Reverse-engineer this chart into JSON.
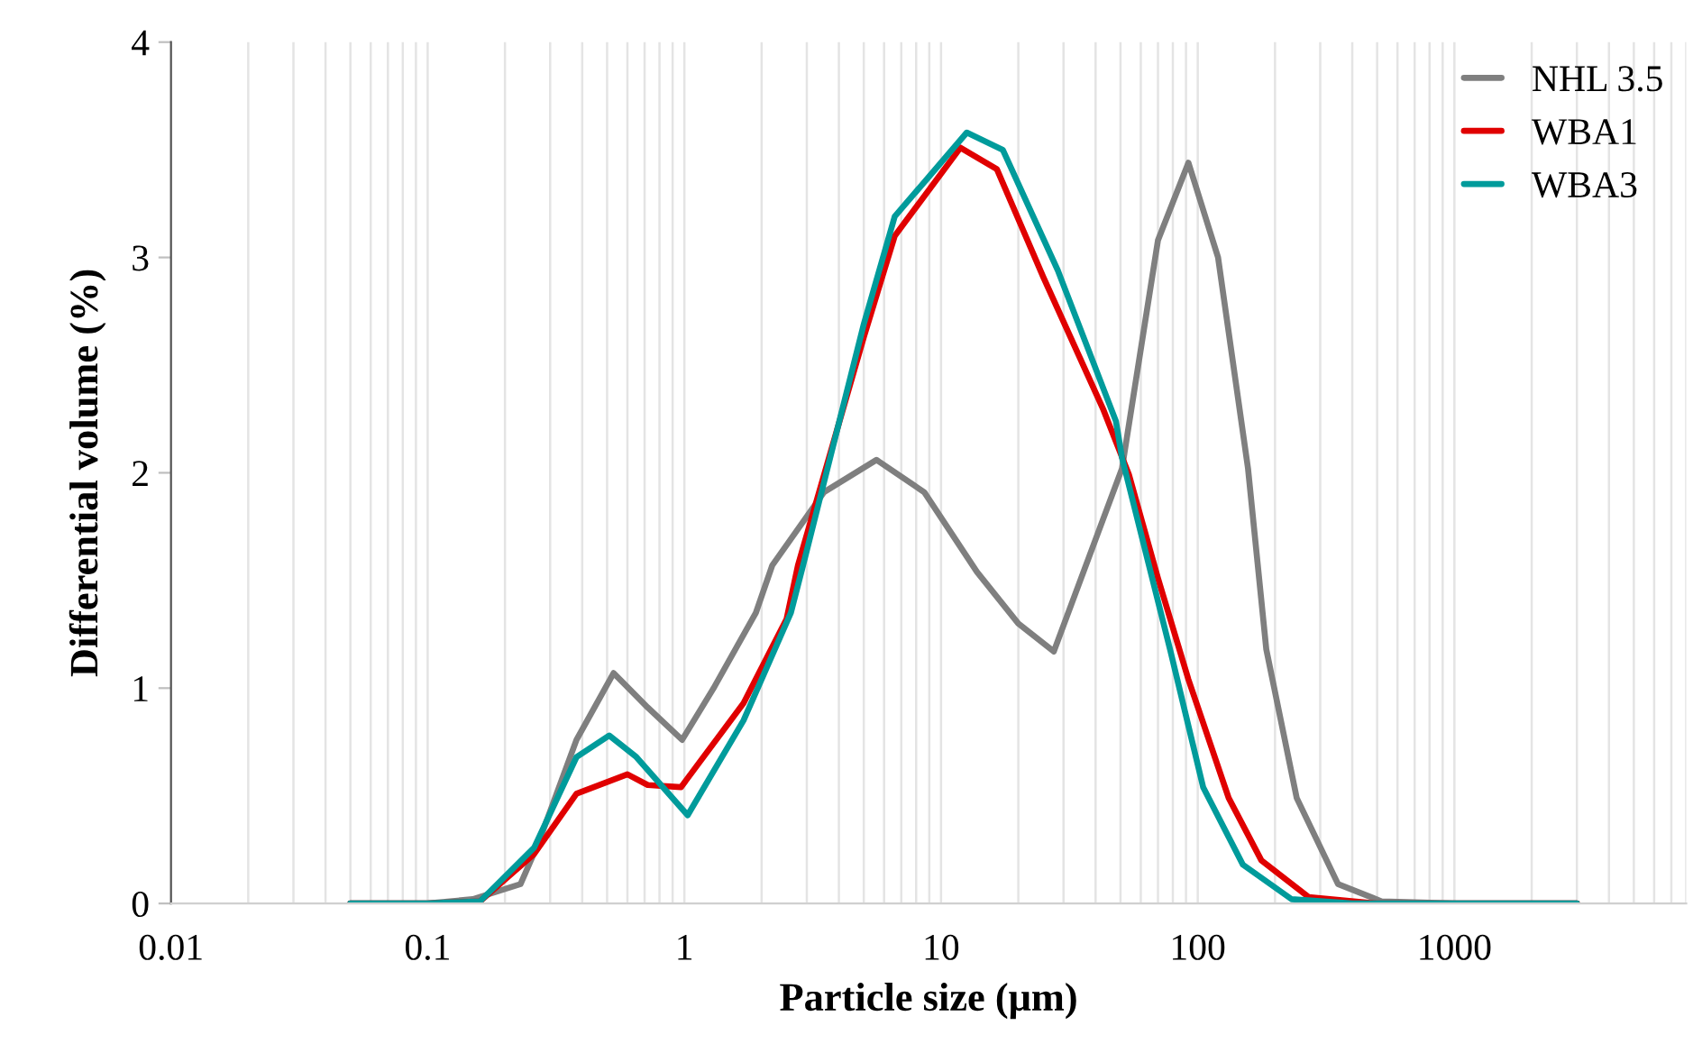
{
  "chart_data": {
    "type": "line",
    "xlabel": "Particle size (μm)",
    "ylabel": "Differential volume (%)",
    "log": "x",
    "xlim": [
      0.01,
      8000
    ],
    "xticks": [
      0.01,
      0.1,
      1,
      10,
      100,
      1000
    ],
    "ylim": [
      0,
      4
    ],
    "yticks": [
      0,
      1,
      2,
      3,
      4
    ],
    "grid": "x",
    "legend": "top right",
    "line_style": "solid",
    "marker": "none",
    "series": [
      {
        "name": "NHL 3.5",
        "color": "#7f7f7f",
        "x": [
          0.05,
          0.1,
          0.15,
          0.23,
          0.27,
          0.38,
          0.53,
          0.72,
          0.98,
          1.3,
          1.9,
          2.2,
          3.5,
          5.6,
          8.6,
          13.8,
          20,
          27.5,
          50.7,
          70,
          92,
          120,
          157,
          185,
          243,
          352,
          520,
          1000,
          3000
        ],
        "values": [
          0,
          0,
          0.02,
          0.09,
          0.28,
          0.76,
          1.07,
          0.91,
          0.76,
          1.0,
          1.35,
          1.57,
          1.91,
          2.06,
          1.91,
          1.54,
          1.3,
          1.17,
          2.02,
          3.08,
          3.44,
          3.0,
          2.02,
          1.18,
          0.49,
          0.09,
          0.01,
          0,
          0
        ]
      },
      {
        "name": "WBA1",
        "color": "#e00000",
        "x": [
          0.05,
          0.1,
          0.16,
          0.26,
          0.38,
          0.6,
          0.72,
          0.97,
          1.7,
          2.5,
          2.77,
          5.0,
          6.6,
          11.9,
          16.5,
          25,
          43,
          54,
          70,
          92,
          132,
          177,
          270,
          500,
          3000
        ],
        "values": [
          0,
          0,
          0.01,
          0.23,
          0.51,
          0.6,
          0.55,
          0.54,
          0.93,
          1.32,
          1.57,
          2.63,
          3.1,
          3.51,
          3.41,
          2.91,
          2.29,
          1.99,
          1.51,
          1.04,
          0.49,
          0.2,
          0.03,
          0,
          0
        ]
      },
      {
        "name": "WBA3",
        "color": "#009b9b",
        "x": [
          0.05,
          0.1,
          0.16,
          0.26,
          0.38,
          0.51,
          0.65,
          1.03,
          1.7,
          2.6,
          2.9,
          5.0,
          6.6,
          12.6,
          17.4,
          28.5,
          48,
          50.7,
          78,
          105,
          150,
          232,
          400,
          3000
        ],
        "values": [
          0,
          0,
          0.01,
          0.26,
          0.68,
          0.78,
          0.68,
          0.41,
          0.85,
          1.35,
          1.57,
          2.69,
          3.19,
          3.58,
          3.5,
          2.94,
          2.24,
          2.07,
          1.18,
          0.54,
          0.18,
          0.02,
          0,
          0
        ]
      }
    ]
  }
}
